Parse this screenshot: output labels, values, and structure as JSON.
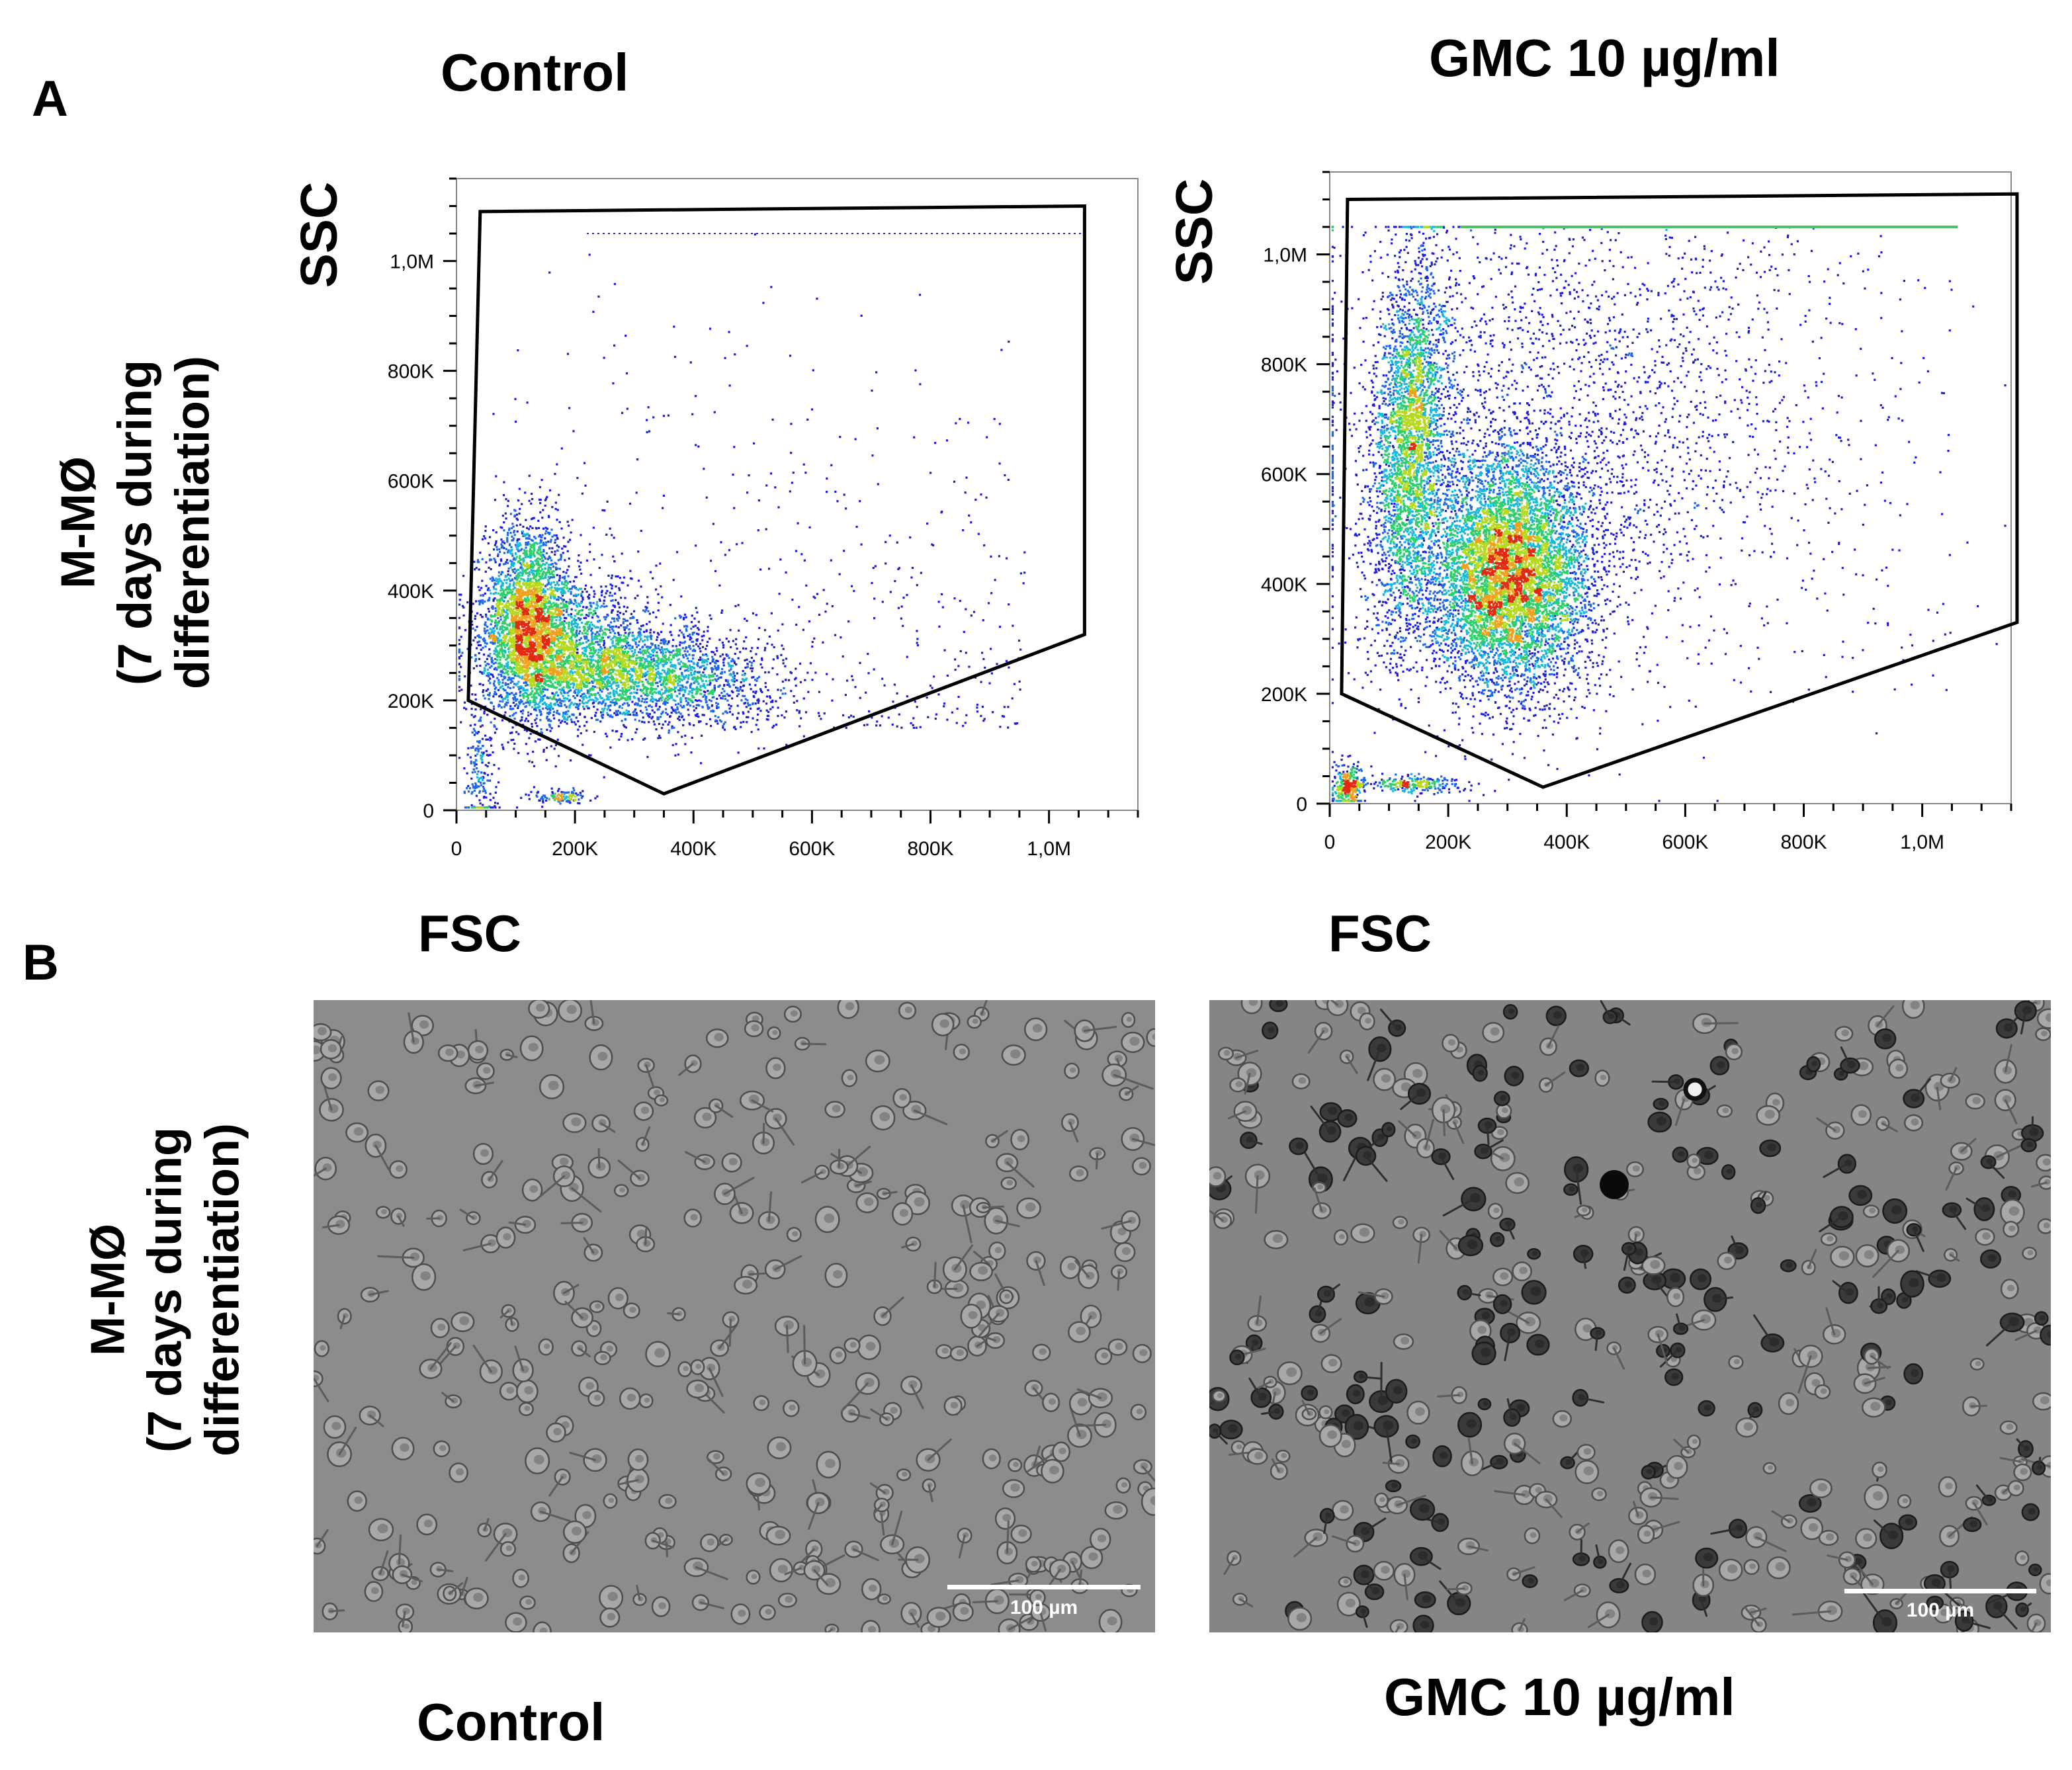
{
  "panel_a": {
    "letter": "A",
    "row_label_line1": "M-MØ",
    "row_label_line2": "(7 days during",
    "row_label_line3": "differentiation)"
  },
  "panel_b": {
    "letter": "B",
    "row_label_line1": "M-MØ",
    "row_label_line2": "(7 days during",
    "row_label_line3": "differentiation)",
    "left_caption": "Control",
    "right_caption": "GMC 10 µg/ml",
    "scale_bar_label": "100 µm"
  },
  "chart_data": [
    {
      "type": "scatter",
      "title": "Control",
      "xlabel": "FSC",
      "ylabel": "SSC",
      "xlim": [
        0,
        1150000
      ],
      "ylim": [
        0,
        1150000
      ],
      "x_ticks": [
        0,
        200000,
        400000,
        600000,
        800000,
        1000000
      ],
      "x_tick_labels": [
        "0",
        "200K",
        "400K",
        "600K",
        "800K",
        "1,0M"
      ],
      "y_ticks": [
        0,
        200000,
        400000,
        600000,
        800000,
        1000000
      ],
      "y_tick_labels": [
        "0",
        "200K",
        "400K",
        "600K",
        "800K",
        "1,0M"
      ],
      "gate": [
        [
          20000,
          200000
        ],
        [
          40000,
          1090000
        ],
        [
          1060000,
          1100000
        ],
        [
          1060000,
          320000
        ],
        [
          350000,
          30000
        ]
      ],
      "populations": [
        {
          "name": "main",
          "x": 120000,
          "y": 350000
        },
        {
          "name": "secondary",
          "x": 310000,
          "y": 250000
        }
      ],
      "saturation_line_y": 1050000
    },
    {
      "type": "scatter",
      "title": "GMC 10 µg/ml",
      "xlabel": "FSC",
      "ylabel": "SSC",
      "xlim": [
        0,
        1150000
      ],
      "ylim": [
        0,
        1150000
      ],
      "x_ticks": [
        0,
        200000,
        400000,
        600000,
        800000,
        1000000
      ],
      "x_tick_labels": [
        "0",
        "200K",
        "400K",
        "600K",
        "800K",
        "1,0M"
      ],
      "y_ticks": [
        0,
        200000,
        400000,
        600000,
        800000,
        1000000
      ],
      "y_tick_labels": [
        "0",
        "200K",
        "400K",
        "600K",
        "800K",
        "1,0M"
      ],
      "gate": [
        [
          20000,
          200000
        ],
        [
          30000,
          1100000
        ],
        [
          1160000,
          1110000
        ],
        [
          1160000,
          330000
        ],
        [
          360000,
          30000
        ]
      ],
      "populations": [
        {
          "name": "main",
          "x": 300000,
          "y": 420000
        },
        {
          "name": "high-ssc",
          "x": 140000,
          "y": 650000
        },
        {
          "name": "debris",
          "x": 30000,
          "y": 30000
        }
      ],
      "saturation_line_y": 1050000
    }
  ]
}
